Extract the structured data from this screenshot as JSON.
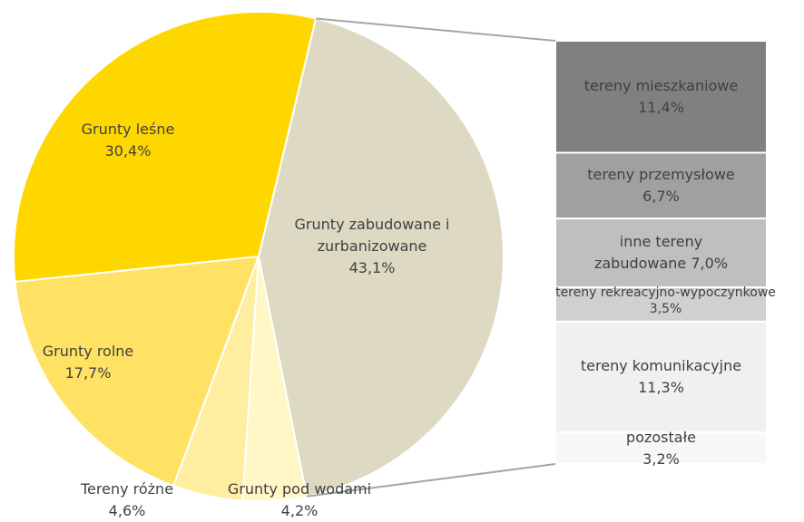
{
  "chart_data": {
    "type": "pie_of_bar",
    "categories": [
      "Grunty zabudowane i zurbanizowane",
      "Grunty pod wodami",
      "Tereny różne",
      "Grunty rolne",
      "Grunty leśne"
    ],
    "values": [
      43.1,
      4.2,
      4.6,
      17.7,
      30.4
    ],
    "value_labels": [
      "43,1%",
      "4,2%",
      "4,6%",
      "17,7%",
      "30,4%"
    ],
    "colors": [
      "#ddd9c3",
      "#fff7c6",
      "#ffeea0",
      "#ffe264",
      "#ffd700"
    ],
    "bar": {
      "categories": [
        "tereny mieszkaniowe",
        "tereny przemysłowe",
        "inne tereny zabudowane",
        "tereny rekreacyjno-wypoczynkowe",
        "tereny komunikacyjne",
        "pozostałe"
      ],
      "values": [
        11.4,
        6.7,
        7.0,
        3.5,
        11.3,
        3.2
      ],
      "value_labels": [
        "11,4%",
        "6,7%",
        "7,0%",
        "3,5%",
        "11,3%",
        "3,2%"
      ],
      "colors": [
        "#808080",
        "#a0a0a0",
        "#bfbfbf",
        "#d0d0d0",
        "#f0f0f0",
        "#f7f7f7"
      ]
    }
  }
}
